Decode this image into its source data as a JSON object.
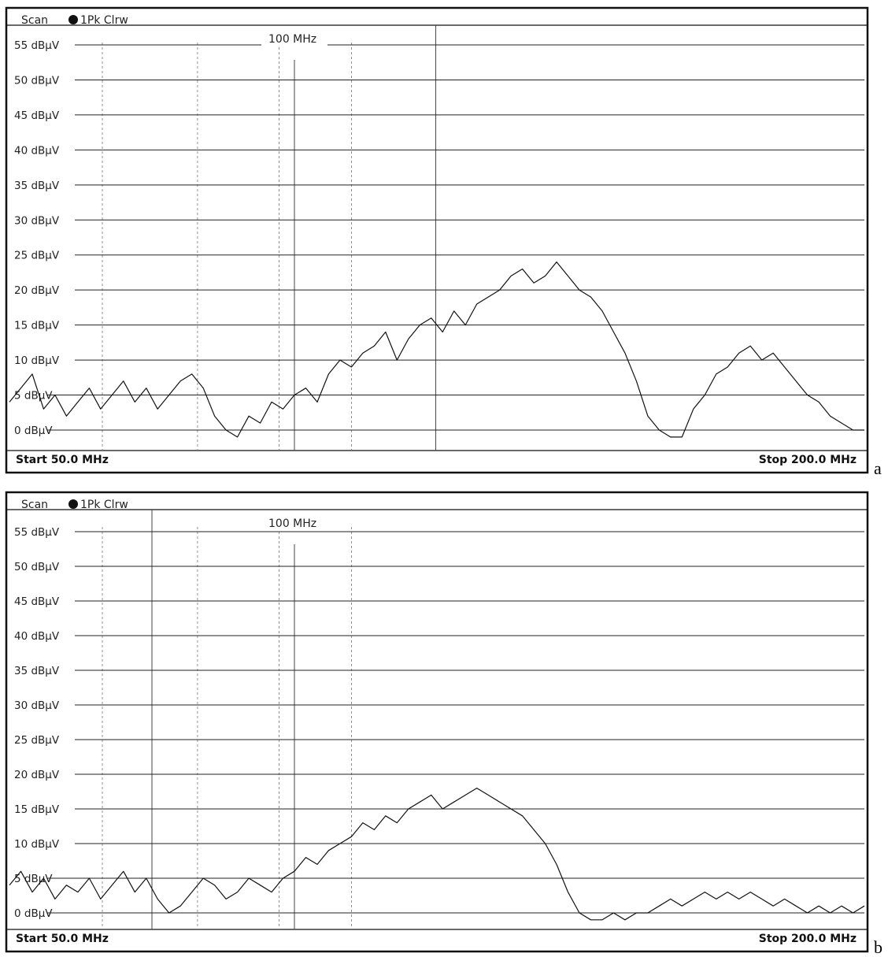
{
  "chart_data": [
    {
      "panel_label": "a",
      "type": "line",
      "title": "Scan",
      "trace_label": "1Pk Clrw",
      "xlim": [
        50,
        200
      ],
      "ylim": [
        -2,
        57
      ],
      "y_ticks": [
        {
          "value": 55,
          "label": "55 dBµV"
        },
        {
          "value": 50,
          "label": "50 dBµV"
        },
        {
          "value": 45,
          "label": "45 dBµV"
        },
        {
          "value": 40,
          "label": "40 dBµV"
        },
        {
          "value": 35,
          "label": "35 dBµV"
        },
        {
          "value": 30,
          "label": "30 dBµV"
        },
        {
          "value": 25,
          "label": "25 dBµV"
        },
        {
          "value": 20,
          "label": "20 dBµV"
        },
        {
          "value": 15,
          "label": "15 dBµV"
        },
        {
          "value": 10,
          "label": "10 dBµV"
        },
        {
          "value": 5,
          "label": "5 dBµV"
        },
        {
          "value": 0,
          "label": "0 dBµV"
        }
      ],
      "dashed_x": [
        66.3,
        83,
        97.3,
        110
      ],
      "solid_x": [
        100,
        124.8
      ],
      "marker": {
        "x": 100,
        "label": "100 MHz"
      },
      "start_label": "Start 50.0 MHz",
      "stop_label": "Stop 200.0 MHz",
      "grid": true,
      "series": [
        {
          "x": [
            50,
            52,
            54,
            56,
            58,
            60,
            62,
            64,
            66,
            68,
            70,
            72,
            74,
            76,
            78,
            80,
            82,
            84,
            86,
            88,
            90,
            92,
            94,
            96,
            98,
            100,
            102,
            104,
            106,
            108,
            110,
            112,
            114,
            116,
            118,
            120,
            122,
            124,
            126,
            128,
            130,
            132,
            134,
            136,
            138,
            140,
            142,
            144,
            146,
            148,
            150,
            152,
            154,
            156,
            158,
            160,
            162,
            164,
            166,
            168,
            170,
            172,
            174,
            176,
            178,
            180,
            182,
            184,
            186,
            188,
            190,
            192,
            194,
            196,
            198,
            200
          ],
          "y": [
            4,
            6,
            8,
            3,
            5,
            2,
            4,
            6,
            3,
            5,
            7,
            4,
            6,
            3,
            5,
            7,
            8,
            6,
            2,
            0,
            -1,
            2,
            1,
            4,
            3,
            5,
            6,
            4,
            8,
            10,
            9,
            11,
            12,
            14,
            10,
            13,
            15,
            16,
            14,
            17,
            15,
            18,
            19,
            20,
            22,
            23,
            21,
            22,
            24,
            22,
            20,
            19,
            17,
            14,
            11,
            7,
            2,
            0,
            -1,
            -1,
            3,
            5,
            8,
            9,
            11,
            12,
            10,
            11,
            9,
            7,
            5,
            4,
            2,
            1,
            0,
            0
          ]
        }
      ]
    },
    {
      "panel_label": "b",
      "type": "line",
      "title": "Scan",
      "trace_label": "1Pk Clrw",
      "xlim": [
        50,
        200
      ],
      "ylim": [
        -2,
        57
      ],
      "y_ticks": [
        {
          "value": 55,
          "label": "55 dBµV"
        },
        {
          "value": 50,
          "label": "50 dBµV"
        },
        {
          "value": 45,
          "label": "45 dBµV"
        },
        {
          "value": 40,
          "label": "40 dBµV"
        },
        {
          "value": 35,
          "label": "35 dBµV"
        },
        {
          "value": 30,
          "label": "30 dBµV"
        },
        {
          "value": 25,
          "label": "25 dBµV"
        },
        {
          "value": 20,
          "label": "20 dBµV"
        },
        {
          "value": 15,
          "label": "15 dBµV"
        },
        {
          "value": 10,
          "label": "10 dBµV"
        },
        {
          "value": 5,
          "label": "5 dBµV"
        },
        {
          "value": 0,
          "label": "0 dBµV"
        }
      ],
      "dashed_x": [
        66.3,
        83,
        97.3,
        110
      ],
      "solid_x": [
        100,
        75
      ],
      "marker": {
        "x": 100,
        "label": "100 MHz"
      },
      "start_label": "Start 50.0 MHz",
      "stop_label": "Stop 200.0 MHz",
      "grid": true,
      "series": [
        {
          "x": [
            50,
            52,
            54,
            56,
            58,
            60,
            62,
            64,
            66,
            68,
            70,
            72,
            74,
            76,
            78,
            80,
            82,
            84,
            86,
            88,
            90,
            92,
            94,
            96,
            98,
            100,
            102,
            104,
            106,
            108,
            110,
            112,
            114,
            116,
            118,
            120,
            122,
            124,
            126,
            128,
            130,
            132,
            134,
            136,
            138,
            140,
            142,
            144,
            146,
            148,
            150,
            152,
            154,
            156,
            158,
            160,
            162,
            164,
            166,
            168,
            170,
            172,
            174,
            176,
            178,
            180,
            182,
            184,
            186,
            188,
            190,
            192,
            194,
            196,
            198,
            200
          ],
          "y": [
            4,
            6,
            3,
            5,
            2,
            4,
            3,
            5,
            2,
            4,
            6,
            3,
            5,
            2,
            0,
            1,
            3,
            5,
            4,
            2,
            3,
            5,
            4,
            3,
            5,
            6,
            8,
            7,
            9,
            10,
            11,
            13,
            12,
            14,
            13,
            15,
            16,
            17,
            15,
            16,
            17,
            18,
            17,
            16,
            15,
            14,
            12,
            10,
            7,
            3,
            0,
            -1,
            -1,
            0,
            -1,
            0,
            0,
            1,
            2,
            1,
            2,
            3,
            2,
            3,
            2,
            3,
            2,
            1,
            2,
            1,
            0,
            1,
            0,
            1,
            0,
            1
          ]
        }
      ]
    }
  ]
}
